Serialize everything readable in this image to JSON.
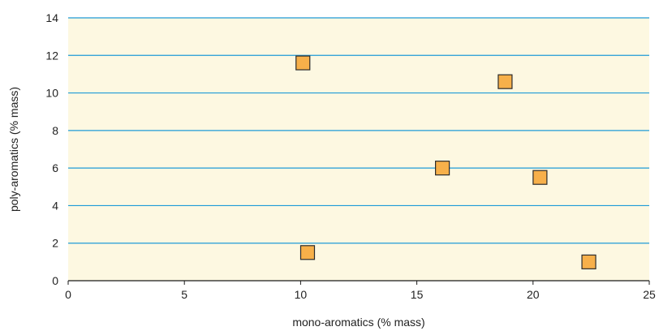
{
  "chart_data": {
    "type": "scatter",
    "title": "",
    "xlabel": "mono-aromatics (% mass)",
    "ylabel": "poly-aromatics (% mass)",
    "xlim": [
      0,
      25
    ],
    "ylim": [
      0,
      14
    ],
    "xticks": [
      0,
      5,
      10,
      15,
      20,
      25
    ],
    "yticks": [
      0,
      2,
      4,
      6,
      8,
      10,
      12,
      14
    ],
    "grid": "horizontal",
    "legend": "none",
    "series": [
      {
        "points": [
          {
            "x": 10.1,
            "y": 11.6
          },
          {
            "x": 18.8,
            "y": 10.6
          },
          {
            "x": 16.1,
            "y": 6.0
          },
          {
            "x": 20.3,
            "y": 5.5
          },
          {
            "x": 10.3,
            "y": 1.5
          },
          {
            "x": 22.4,
            "y": 1.0
          }
        ]
      }
    ],
    "colors": {
      "plot_background": "#FDF8E1",
      "gridline": "#1E9BD7",
      "marker_fill": "#F7B04A",
      "marker_stroke": "#2B2B2B",
      "axis_line": "#1A1A1A"
    },
    "marker": "square"
  }
}
